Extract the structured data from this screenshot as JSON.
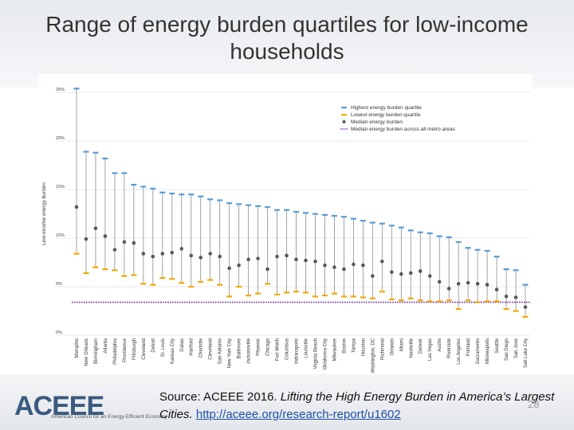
{
  "slide": {
    "title": "Range of energy burden quartiles for low-income households",
    "source_prefix": "Source: ACEEE 2016. ",
    "source_title": "Lifting the High Energy Burden in America’s Largest Cities.",
    "source_url": "http://aceee.org/research-report/u1602",
    "page_number": "28"
  },
  "logo": {
    "name": "ACEEE",
    "tagline": "American Council for an Energy-Efficient Economy"
  },
  "colors": {
    "highest": "#5b9bd5",
    "lowest": "#f2a900",
    "median": "#595959",
    "metro_median": "#7030a0",
    "range_line": "#8c8c8c",
    "grid": "#e8e8e8"
  },
  "chart_data": {
    "type": "scatter",
    "title": "",
    "xlabel": "",
    "ylabel": "Low-income energy burden",
    "ylim": [
      0,
      25
    ],
    "yticks": [
      "0%",
      "5%",
      "10%",
      "15%",
      "20%",
      "25%"
    ],
    "legend_position": "top-right",
    "legend": [
      "Highest energy burden quartile",
      "Lowest energy burden quartile",
      "Median energy burden",
      "Median energy burden across all metro areas"
    ],
    "metro_median": 3.4,
    "categories": [
      "Memphis",
      "New Orleans",
      "Birmingham",
      "Atlanta",
      "Philadelphia",
      "Providence",
      "Pittsburgh",
      "Cleveland",
      "Detroit",
      "St. Louis",
      "Kansas City",
      "Dallas",
      "Hartford",
      "Charlotte",
      "Cleveland",
      "San Antonio",
      "New York City",
      "Baltimore",
      "Jacksonville",
      "Phoenix",
      "Chicago",
      "Fort Worth",
      "Columbus",
      "Indianapolis",
      "Louisville",
      "Virginia Beach",
      "Oklahoma City",
      "Milwaukee",
      "Boston",
      "Tampa",
      "Houston",
      "Washington, DC",
      "Richmond",
      "Orlando",
      "Miami",
      "Nashville",
      "Denver",
      "Las Vegas",
      "Austin",
      "Riverside",
      "Los Angeles",
      "Portland",
      "Sacramento",
      "Minneapolis",
      "Seattle",
      "San Diego",
      "San Jose",
      "Salt Lake City"
    ],
    "series": [
      {
        "name": "Highest energy burden quartile",
        "values": [
          25.4,
          18.9,
          18.8,
          18.2,
          16.7,
          16.7,
          15.5,
          15.3,
          15.1,
          14.7,
          14.6,
          14.5,
          14.5,
          14.3,
          14.0,
          13.9,
          13.6,
          13.5,
          13.4,
          13.3,
          13.2,
          12.9,
          12.9,
          12.7,
          12.6,
          12.5,
          12.4,
          12.3,
          12.2,
          12.0,
          11.8,
          11.6,
          11.5,
          11.3,
          11.1,
          10.8,
          10.6,
          10.5,
          10.2,
          10.1,
          9.6,
          9.0,
          8.8,
          8.7,
          8.1,
          6.8,
          6.7,
          5.2
        ]
      },
      {
        "name": "Lowest energy burden quartile",
        "values": [
          8.4,
          6.4,
          7.0,
          6.8,
          6.7,
          6.1,
          6.2,
          5.3,
          5.2,
          5.9,
          5.8,
          5.4,
          5.0,
          5.5,
          5.7,
          5.2,
          4.0,
          5.0,
          4.1,
          4.3,
          5.3,
          4.2,
          4.4,
          4.5,
          4.4,
          4.0,
          4.1,
          4.3,
          4.0,
          4.0,
          3.9,
          3.8,
          4.5,
          3.7,
          3.6,
          3.8,
          3.6,
          3.5,
          3.5,
          3.6,
          2.7,
          3.6,
          3.4,
          3.5,
          3.5,
          2.7,
          2.5,
          1.9
        ]
      },
      {
        "name": "Median energy burden",
        "values": [
          13.2,
          9.9,
          11.0,
          10.2,
          8.8,
          9.6,
          9.5,
          8.4,
          8.1,
          8.4,
          8.5,
          8.9,
          8.2,
          8.0,
          8.4,
          8.1,
          6.9,
          7.2,
          7.8,
          7.9,
          6.8,
          8.1,
          8.2,
          7.8,
          7.7,
          7.6,
          7.2,
          7.0,
          6.8,
          7.3,
          7.2,
          6.1,
          7.6,
          6.5,
          6.3,
          6.4,
          6.6,
          6.1,
          5.5,
          4.8,
          5.3,
          5.4,
          5.3,
          5.2,
          4.7,
          4.0,
          3.9,
          2.9
        ]
      }
    ]
  }
}
